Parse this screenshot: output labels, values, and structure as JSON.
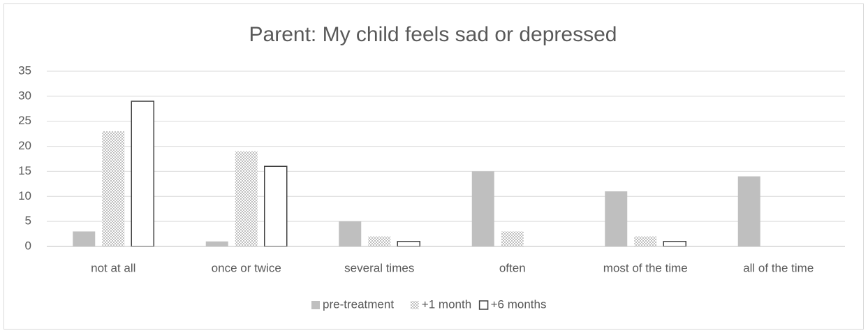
{
  "chart_data": {
    "type": "bar",
    "title": "Parent: My child feels sad or depressed",
    "categories": [
      "not at all",
      "once or twice",
      "several times",
      "often",
      "most of the time",
      "all of the time"
    ],
    "series": [
      {
        "name": "pre-treatment",
        "color": "#bfbfbf",
        "style": "solid",
        "values": [
          3,
          1,
          5,
          15,
          11,
          14
        ]
      },
      {
        "name": "+1 month",
        "color": "#bfbfbf",
        "style": "hatch",
        "values": [
          23,
          19,
          2,
          3,
          2,
          0
        ]
      },
      {
        "name": "+6 months",
        "color": "#404040",
        "style": "outline",
        "values": [
          29,
          16,
          1,
          0,
          1,
          0
        ]
      }
    ],
    "ylim": [
      0,
      35
    ],
    "yticks": [
      0,
      5,
      10,
      15,
      20,
      25,
      30,
      35
    ],
    "grid": true,
    "legend": "bottom"
  }
}
